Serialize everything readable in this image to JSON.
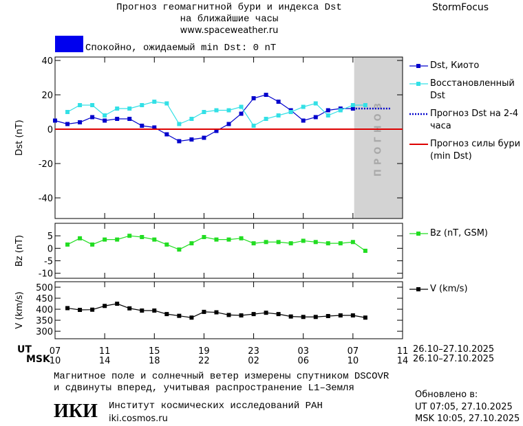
{
  "header": {
    "title": "Прогноз геомагнитной бури и индекса Dst",
    "subtitle": "на ближайшие часы",
    "url": "www.spaceweather.ru",
    "brand": "StormFocus"
  },
  "status": {
    "color": "#0000ee",
    "text": "Спокойно, ожидаемый min Dst: 0 nT"
  },
  "x_axis": {
    "ut_label": "UT",
    "msk_label": "MSK",
    "date_range": "26.10–27.10.2025",
    "xlim": [
      0,
      28
    ],
    "xticks": [
      {
        "value": 0,
        "label": "07"
      },
      {
        "value": 4,
        "label": "11"
      },
      {
        "value": 8,
        "label": "15"
      },
      {
        "value": 12,
        "label": "19"
      },
      {
        "value": 16,
        "label": "23"
      },
      {
        "value": 20,
        "label": "03"
      },
      {
        "value": 24,
        "label": "07"
      },
      {
        "value": 28,
        "label": "11"
      }
    ],
    "msk_ticks": [
      {
        "value": 0,
        "label": "10"
      },
      {
        "value": 4,
        "label": "14"
      },
      {
        "value": 8,
        "label": "18"
      },
      {
        "value": 12,
        "label": "22"
      },
      {
        "value": 16,
        "label": "02"
      },
      {
        "value": 20,
        "label": "06"
      },
      {
        "value": 24,
        "label": "10"
      },
      {
        "value": 28,
        "label": "14"
      }
    ]
  },
  "chart_data": [
    {
      "type": "line",
      "ylabel": "Dst (nT)",
      "ylim": [
        -52,
        42
      ],
      "yticks": [
        -40,
        -20,
        0,
        20,
        40
      ],
      "forecast_band": {
        "x": [
          24.1,
          28
        ],
        "label": "ПРОГНОЗ"
      },
      "series": [
        {
          "name": "Dst, Киото",
          "color": "#0000cc",
          "x": [
            0,
            1,
            2,
            3,
            4,
            5,
            6,
            7,
            8,
            9,
            10,
            11,
            12,
            13,
            14,
            15,
            16,
            17,
            18,
            19,
            20,
            21,
            22,
            23,
            24
          ],
          "values": [
            5,
            3,
            4,
            7,
            5,
            6,
            6,
            2,
            1,
            -3,
            -7,
            -6,
            -5,
            -1,
            3,
            9,
            18,
            20,
            16,
            11,
            5,
            7,
            11,
            12,
            12
          ]
        },
        {
          "name": "Восстановленный Dst",
          "color": "#33e0e6",
          "x": [
            1,
            2,
            3,
            4,
            5,
            6,
            7,
            8,
            9,
            10,
            11,
            12,
            13,
            14,
            15,
            16,
            17,
            18,
            19,
            20,
            21,
            22,
            23,
            24,
            25
          ],
          "values": [
            10,
            14,
            14,
            8,
            12,
            12,
            14,
            16,
            15,
            3,
            6,
            10,
            11,
            11,
            13,
            2,
            6,
            8,
            10,
            13,
            15,
            8,
            11,
            14,
            14
          ]
        },
        {
          "name": "Прогноз Dst на 2-4 часа",
          "color": "#0000cc",
          "dash": true,
          "x": [
            24,
            27
          ],
          "values": [
            12,
            12
          ]
        },
        {
          "name": "Прогноз силы бури (min Dst)",
          "color": "#dd0000",
          "level": 0
        }
      ]
    },
    {
      "type": "line",
      "ylabel": "Bz (nT)",
      "ylim": [
        -12,
        10
      ],
      "yticks": [
        -10,
        -5,
        0,
        5
      ],
      "series": [
        {
          "name": "Bz (nT, GSM)",
          "color": "#22dd22",
          "x": [
            1,
            2,
            3,
            4,
            5,
            6,
            7,
            8,
            9,
            10,
            11,
            12,
            13,
            14,
            15,
            16,
            17,
            18,
            19,
            20,
            21,
            22,
            23,
            24,
            25
          ],
          "values": [
            1.5,
            4,
            1.5,
            3.5,
            3.5,
            5,
            4.5,
            3.5,
            1.5,
            -0.5,
            2,
            4.5,
            3.5,
            3.5,
            4,
            2,
            2.5,
            2.5,
            2,
            3,
            2.5,
            2,
            2,
            2.5,
            -1
          ]
        }
      ]
    },
    {
      "type": "line",
      "ylabel": "V (km/s)",
      "ylim": [
        266,
        525
      ],
      "yticks": [
        300,
        350,
        400,
        450,
        500
      ],
      "series": [
        {
          "name": "V (km/s)",
          "color": "#000000",
          "x": [
            1,
            2,
            3,
            4,
            5,
            6,
            7,
            8,
            9,
            10,
            11,
            12,
            13,
            14,
            15,
            16,
            17,
            18,
            19,
            20,
            21,
            22,
            23,
            24,
            25
          ],
          "values": [
            405,
            397,
            398,
            415,
            425,
            404,
            394,
            394,
            378,
            370,
            362,
            388,
            386,
            374,
            372,
            378,
            384,
            378,
            367,
            365,
            365,
            369,
            372,
            372,
            362
          ]
        }
      ]
    }
  ],
  "footer": {
    "note": [
      "Магнитное поле и солнечный ветер измерены спутником DSCOVR",
      "и сдвинуты вперед, учитывая распространение L1–Земля"
    ],
    "logo": "ИКИ",
    "institute": "Институт космических исследований РАН",
    "site": "iki.cosmos.ru",
    "updated_label": "Обновлено в:",
    "updated_ut": "UT  07:05, 27.10.2025",
    "updated_msk": "MSK 10:05, 27.10.2025"
  }
}
